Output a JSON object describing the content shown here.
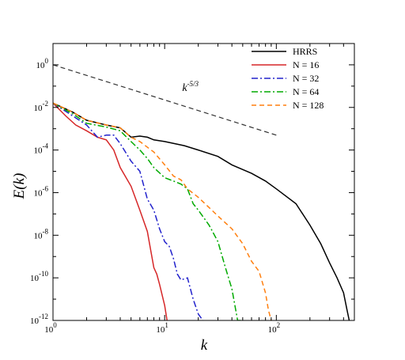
{
  "chart_data": {
    "type": "line",
    "xscale": "log",
    "yscale": "log",
    "xlim": [
      1,
      500
    ],
    "ylim": [
      1e-12,
      10
    ],
    "xlabel": "k",
    "ylabel": "E(k)",
    "x_ticks": [
      {
        "value": 1,
        "base": "10",
        "exp": "0"
      },
      {
        "value": 10,
        "base": "10",
        "exp": "1"
      },
      {
        "value": 100,
        "base": "10",
        "exp": "2"
      }
    ],
    "y_ticks": [
      {
        "value": 1e-12,
        "base": "10",
        "exp": "-12"
      },
      {
        "value": 1e-10,
        "base": "10",
        "exp": "-10"
      },
      {
        "value": 1e-08,
        "base": "10",
        "exp": "-8"
      },
      {
        "value": 1e-06,
        "base": "10",
        "exp": "-6"
      },
      {
        "value": 0.0001,
        "base": "10",
        "exp": "-4"
      },
      {
        "value": 0.01,
        "base": "10",
        "exp": "-2"
      },
      {
        "value": 1,
        "base": "10",
        "exp": "0"
      }
    ],
    "legend_position": "top-right",
    "series": [
      {
        "name": "HRRS",
        "color": "#000000",
        "dash": "solid",
        "points": [
          [
            1,
            0.016
          ],
          [
            1.5,
            0.006
          ],
          [
            2,
            0.0025
          ],
          [
            3,
            0.0015
          ],
          [
            4,
            0.0011
          ],
          [
            5,
            0.0004
          ],
          [
            6,
            0.00045
          ],
          [
            7,
            0.0004
          ],
          [
            8,
            0.0003
          ],
          [
            10,
            0.00025
          ],
          [
            15,
            0.00016
          ],
          [
            20,
            0.0001
          ],
          [
            30,
            5e-05
          ],
          [
            40,
            2e-05
          ],
          [
            60,
            8e-06
          ],
          [
            80,
            3.5e-06
          ],
          [
            100,
            1.5e-06
          ],
          [
            150,
            3e-07
          ],
          [
            200,
            3e-08
          ],
          [
            250,
            4e-09
          ],
          [
            300,
            5e-10
          ],
          [
            350,
            1e-10
          ],
          [
            400,
            2e-11
          ],
          [
            430,
            3e-12
          ],
          [
            450,
            1e-12
          ]
        ]
      },
      {
        "name": "N = 16",
        "color": "#d62728",
        "dash": "solid",
        "points": [
          [
            1,
            0.016
          ],
          [
            1.3,
            0.004
          ],
          [
            1.6,
            0.0015
          ],
          [
            2,
            0.0008
          ],
          [
            2.5,
            0.0004
          ],
          [
            3,
            0.0003
          ],
          [
            3.5,
            0.0001
          ],
          [
            4,
            1.5e-05
          ],
          [
            5,
            2e-06
          ],
          [
            6,
            1.5e-07
          ],
          [
            7,
            1.5e-08
          ],
          [
            7.5,
            2e-09
          ],
          [
            8,
            3e-10
          ],
          [
            8.5,
            1.5e-10
          ],
          [
            9,
            5e-11
          ],
          [
            10,
            5e-12
          ],
          [
            10.5,
            1e-12
          ]
        ]
      },
      {
        "name": "N = 32",
        "color": "#2222cc",
        "dash": "dashdot",
        "points": [
          [
            1,
            0.016
          ],
          [
            1.5,
            0.004
          ],
          [
            2,
            0.0015
          ],
          [
            2.5,
            0.0004
          ],
          [
            3,
            0.0005
          ],
          [
            3.5,
            0.0005
          ],
          [
            4,
            0.0002
          ],
          [
            5,
            3e-05
          ],
          [
            6,
            1e-05
          ],
          [
            7,
            5e-07
          ],
          [
            8,
            1.5e-07
          ],
          [
            9,
            2e-08
          ],
          [
            10,
            5e-09
          ],
          [
            11,
            3e-09
          ],
          [
            12,
            8e-10
          ],
          [
            13,
            1.5e-10
          ],
          [
            14,
            8e-11
          ],
          [
            16,
            1e-10
          ],
          [
            18,
            1e-11
          ],
          [
            20,
            2e-12
          ],
          [
            22,
            1e-12
          ]
        ]
      },
      {
        "name": "N = 64",
        "color": "#00aa00",
        "dash": "dashdot",
        "points": [
          [
            1,
            0.016
          ],
          [
            1.5,
            0.005
          ],
          [
            2,
            0.0018
          ],
          [
            3,
            0.0012
          ],
          [
            4,
            0.0008
          ],
          [
            5,
            0.00025
          ],
          [
            6,
            0.0001
          ],
          [
            7,
            4e-05
          ],
          [
            8,
            1.5e-05
          ],
          [
            10,
            5e-06
          ],
          [
            12,
            3.5e-06
          ],
          [
            14,
            2.5e-06
          ],
          [
            16,
            1.5e-06
          ],
          [
            18,
            3e-07
          ],
          [
            20,
            1.5e-07
          ],
          [
            25,
            3e-08
          ],
          [
            30,
            5e-09
          ],
          [
            35,
            3e-10
          ],
          [
            40,
            3e-11
          ],
          [
            45,
            1e-12
          ],
          [
            48,
            1e-12
          ]
        ]
      },
      {
        "name": "N = 128",
        "color": "#ff7f0e",
        "dash": "dashed",
        "points": [
          [
            1,
            0.016
          ],
          [
            1.5,
            0.006
          ],
          [
            2,
            0.0025
          ],
          [
            3,
            0.0015
          ],
          [
            4,
            0.0011
          ],
          [
            5,
            0.0004
          ],
          [
            6,
            0.00025
          ],
          [
            8,
            8e-05
          ],
          [
            10,
            2e-05
          ],
          [
            12,
            6e-06
          ],
          [
            14,
            4e-06
          ],
          [
            16,
            1.5e-06
          ],
          [
            20,
            6e-07
          ],
          [
            25,
            2e-07
          ],
          [
            30,
            8e-08
          ],
          [
            40,
            2e-08
          ],
          [
            50,
            4e-09
          ],
          [
            60,
            6e-10
          ],
          [
            70,
            2e-10
          ],
          [
            80,
            2e-11
          ],
          [
            85,
            3e-12
          ],
          [
            90,
            1e-12
          ]
        ]
      },
      {
        "name": "",
        "color": "#333333",
        "dash": "dashed",
        "role": "reference",
        "points": [
          [
            1,
            1
          ],
          [
            100,
            0.0005
          ]
        ]
      }
    ],
    "annotations": [
      {
        "base": "k",
        "exp": "-5/3",
        "x": 17,
        "y": 0.06
      }
    ]
  }
}
